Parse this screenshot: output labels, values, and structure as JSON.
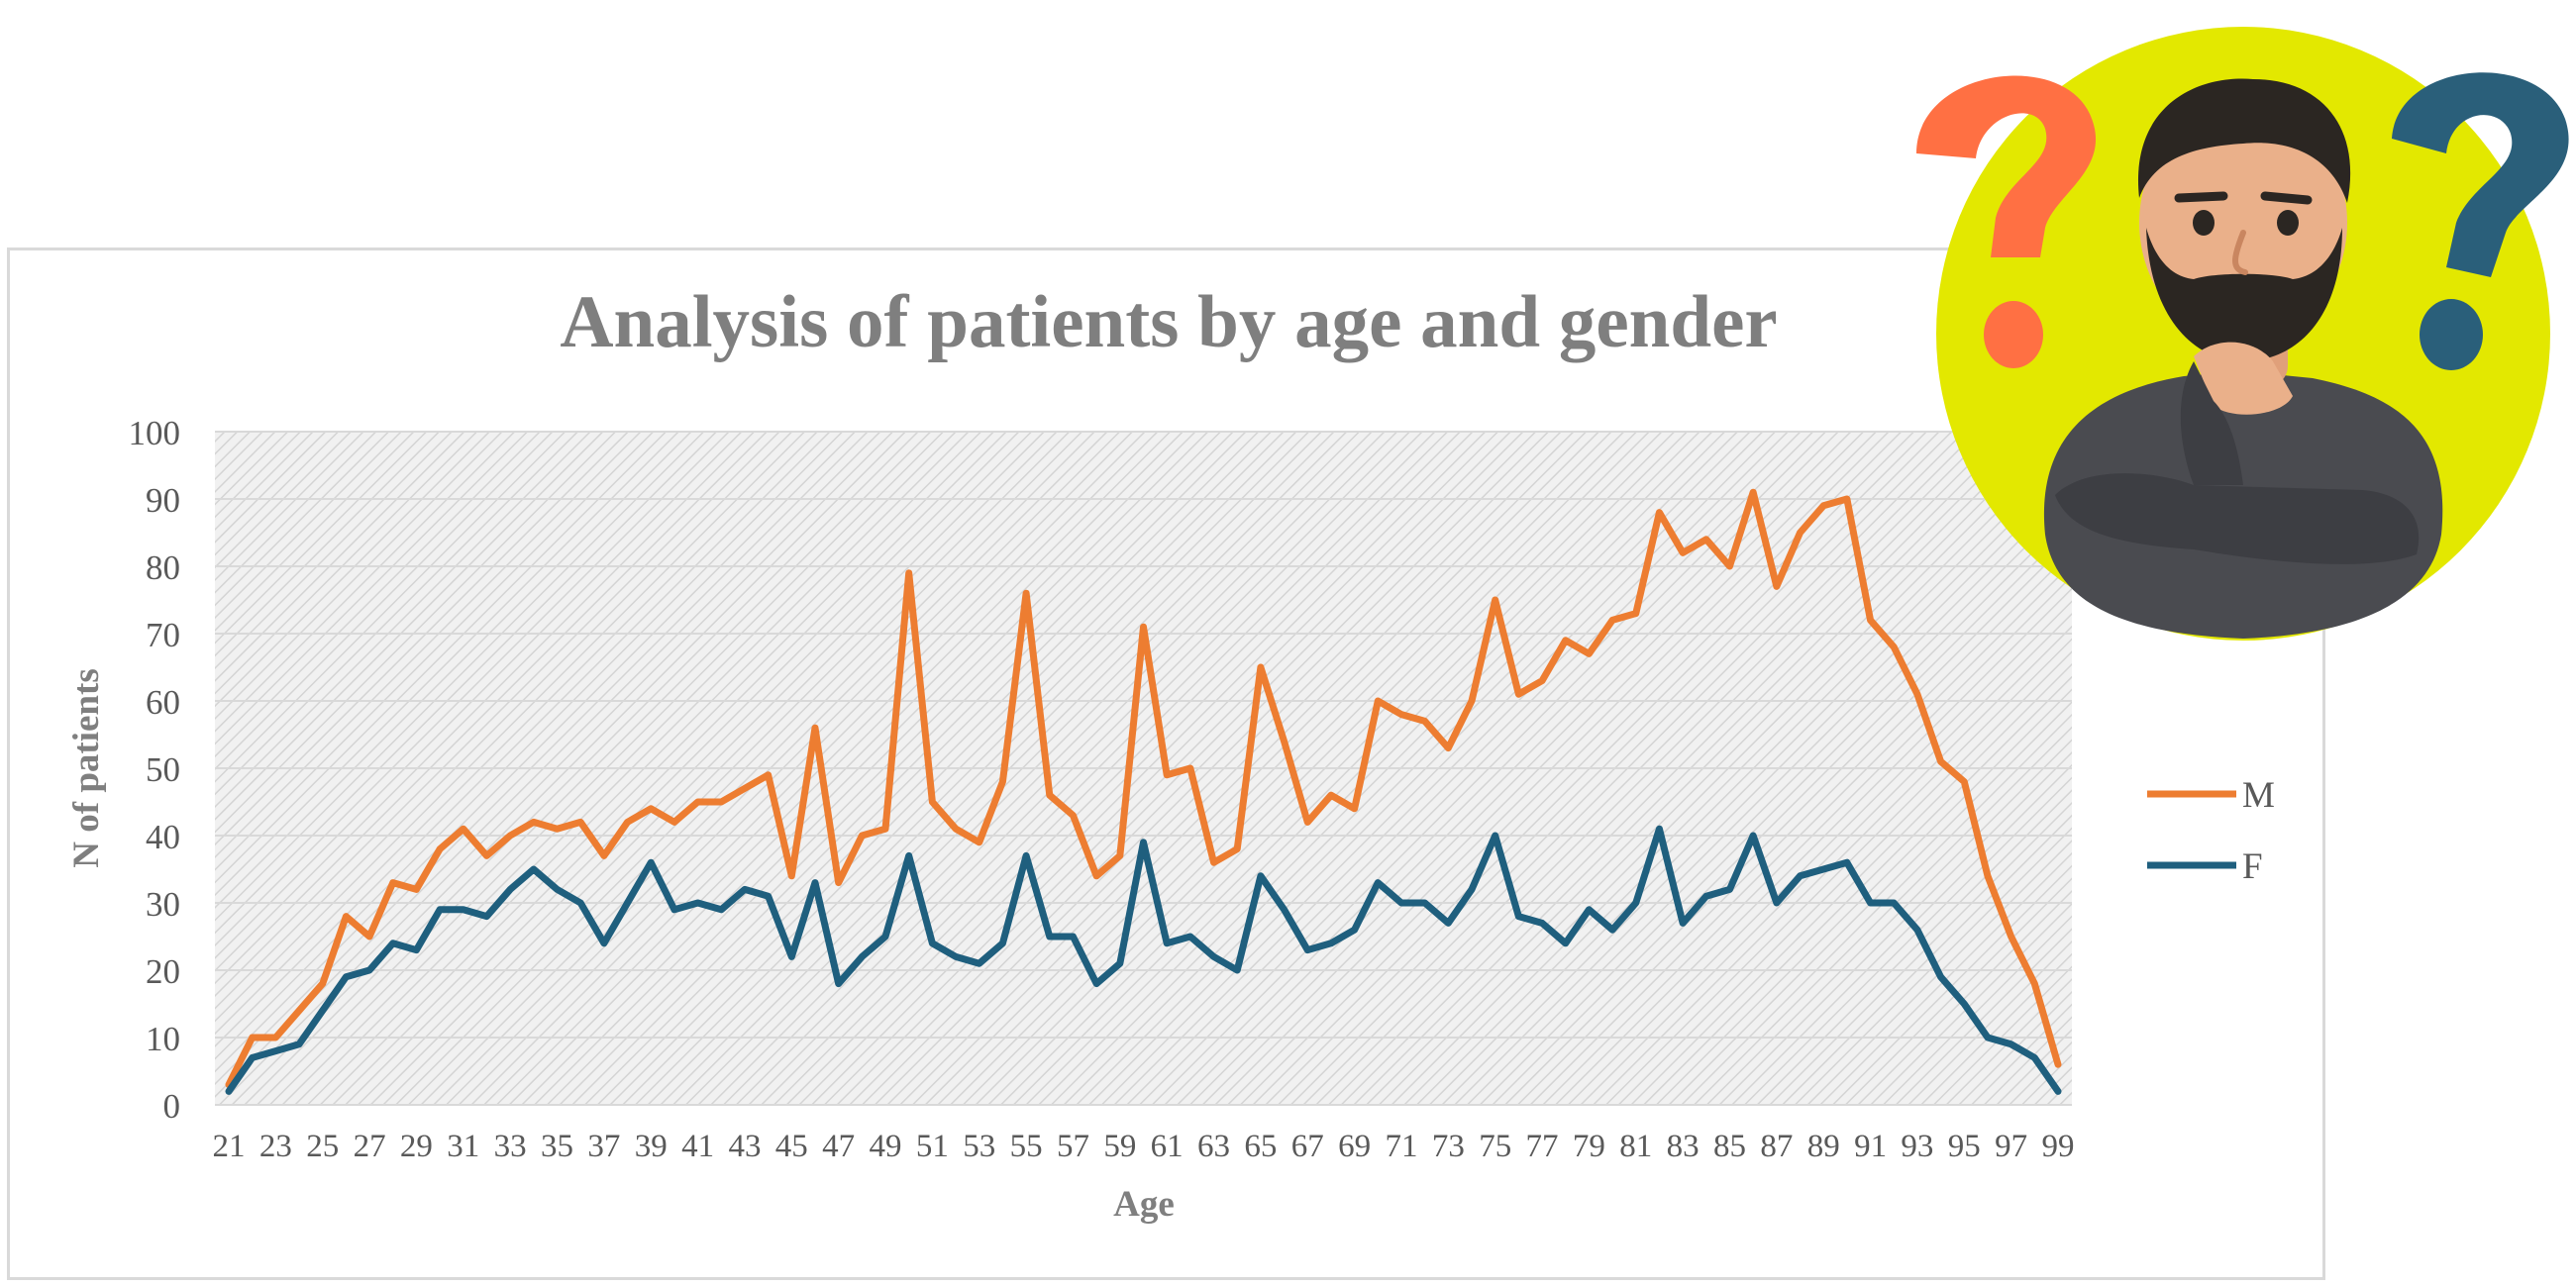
{
  "chart_data": {
    "type": "line",
    "title": "Analysis of patients by age and gender",
    "xlabel": "Age",
    "ylabel": "N of patients",
    "ylim": [
      0,
      100
    ],
    "yticks": [
      0,
      10,
      20,
      30,
      40,
      50,
      60,
      70,
      80,
      90,
      100
    ],
    "xlim": [
      21,
      99
    ],
    "xticks": [
      21,
      23,
      25,
      27,
      29,
      31,
      33,
      35,
      37,
      39,
      41,
      43,
      45,
      47,
      49,
      51,
      53,
      55,
      57,
      59,
      61,
      63,
      65,
      67,
      69,
      71,
      73,
      75,
      77,
      79,
      81,
      83,
      85,
      87,
      89,
      91,
      93,
      95,
      97,
      99
    ],
    "x": [
      21,
      22,
      23,
      24,
      25,
      26,
      27,
      28,
      29,
      30,
      31,
      32,
      33,
      34,
      35,
      36,
      37,
      38,
      39,
      40,
      41,
      42,
      43,
      44,
      45,
      46,
      47,
      48,
      49,
      50,
      51,
      52,
      53,
      54,
      55,
      56,
      57,
      58,
      59,
      60,
      61,
      62,
      63,
      64,
      65,
      66,
      67,
      68,
      69,
      70,
      71,
      72,
      73,
      74,
      75,
      76,
      77,
      78,
      79,
      80,
      81,
      82,
      83,
      84,
      85,
      86,
      87,
      88,
      89,
      90,
      91,
      92,
      93,
      94,
      95,
      96,
      97,
      98,
      99
    ],
    "series": [
      {
        "name": "M",
        "color": "#ED7D31",
        "values": [
          3,
          10,
          10,
          14,
          18,
          28,
          25,
          33,
          32,
          38,
          41,
          37,
          40,
          42,
          41,
          42,
          37,
          42,
          44,
          42,
          45,
          45,
          47,
          49,
          34,
          56,
          33,
          40,
          41,
          79,
          45,
          41,
          39,
          48,
          76,
          46,
          43,
          34,
          37,
          71,
          49,
          50,
          36,
          38,
          65,
          54,
          42,
          46,
          44,
          60,
          58,
          57,
          53,
          60,
          75,
          61,
          63,
          69,
          67,
          72,
          73,
          88,
          82,
          84,
          80,
          91,
          77,
          85,
          89,
          90,
          72,
          68,
          61,
          51,
          48,
          34,
          25,
          18,
          6
        ]
      },
      {
        "name": "F",
        "color": "#1F5F7E",
        "values": [
          2,
          7,
          8,
          9,
          14,
          19,
          20,
          24,
          23,
          29,
          29,
          28,
          32,
          35,
          32,
          30,
          24,
          30,
          36,
          29,
          30,
          29,
          32,
          31,
          22,
          33,
          18,
          22,
          25,
          37,
          24,
          22,
          21,
          24,
          37,
          25,
          25,
          18,
          21,
          39,
          24,
          25,
          22,
          20,
          34,
          29,
          23,
          24,
          26,
          33,
          30,
          30,
          27,
          32,
          40,
          28,
          27,
          24,
          29,
          26,
          30,
          41,
          27,
          31,
          32,
          40,
          30,
          34,
          35,
          36,
          30,
          30,
          26,
          19,
          15,
          10,
          9,
          7,
          2
        ]
      }
    ],
    "legend_position": "right",
    "plot_background": "hatched light gray"
  },
  "illustration": {
    "icon": "thinking-man-with-question-marks-icon",
    "circle_color": "#E3E800",
    "question_mark_colors": [
      "#FF7043",
      "#2A5F7A"
    ]
  }
}
